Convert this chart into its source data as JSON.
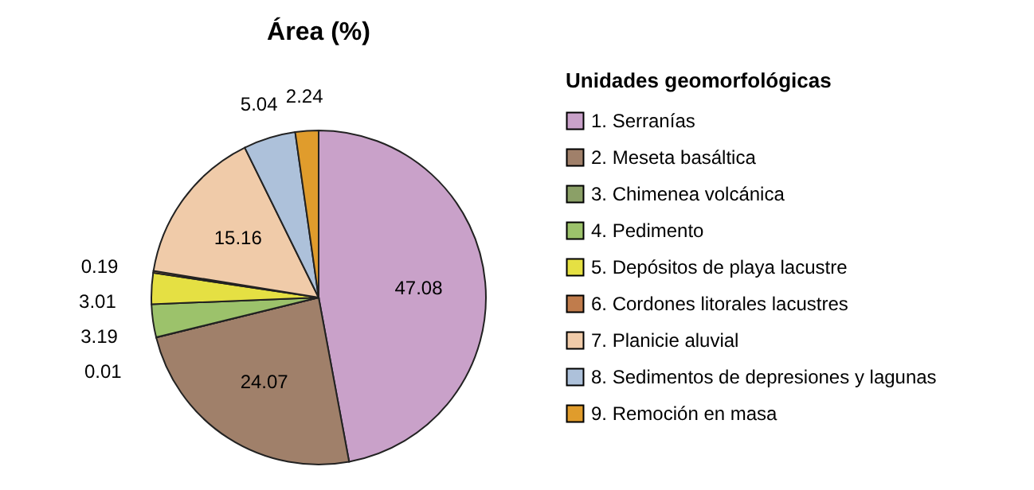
{
  "chart_data": {
    "type": "pie",
    "title": "Área (%)",
    "legend_title": "Unidades geomorfológicas",
    "legend": "right",
    "data_labels": true,
    "categories": [
      "1. Serranías",
      "2. Meseta basáltica",
      "3. Chimenea volcánica",
      "4. Pedimento",
      "5. Depósitos de playa lacustre",
      "6. Cordones litorales lacustres",
      "7. Planicie aluvial",
      "8. Sedimentos de depresiones y lagunas",
      "9. Remoción en masa"
    ],
    "values": [
      47.08,
      24.07,
      0.01,
      3.19,
      3.01,
      0.19,
      15.16,
      5.04,
      2.24
    ],
    "colors": [
      "#c9a1c9",
      "#a0806a",
      "#8ba067",
      "#9cc26b",
      "#e5e043",
      "#c07c4c",
      "#f0cba9",
      "#adc1da",
      "#e09c2c"
    ]
  }
}
